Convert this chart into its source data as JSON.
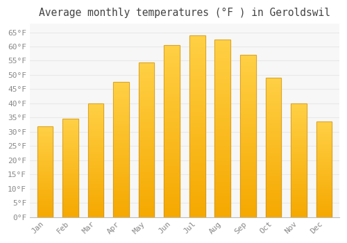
{
  "title": "Average monthly temperatures (°F ) in Geroldswil",
  "months": [
    "Jan",
    "Feb",
    "Mar",
    "Apr",
    "May",
    "Jun",
    "Jul",
    "Aug",
    "Sep",
    "Oct",
    "Nov",
    "Dec"
  ],
  "values": [
    32,
    34.5,
    40,
    47.5,
    54.5,
    60.5,
    64,
    62.5,
    57,
    49,
    40,
    33.5
  ],
  "bar_color_light": "#FFD045",
  "bar_color_dark": "#F5A800",
  "bar_edge_color": "#C8922A",
  "ylim": [
    0,
    68
  ],
  "yticks": [
    0,
    5,
    10,
    15,
    20,
    25,
    30,
    35,
    40,
    45,
    50,
    55,
    60,
    65
  ],
  "background_color": "#ffffff",
  "plot_bg_color": "#f7f7f7",
  "grid_color": "#e8e8e8",
  "tick_label_color": "#888888",
  "title_color": "#444444",
  "title_fontsize": 10.5,
  "tick_fontsize": 8
}
